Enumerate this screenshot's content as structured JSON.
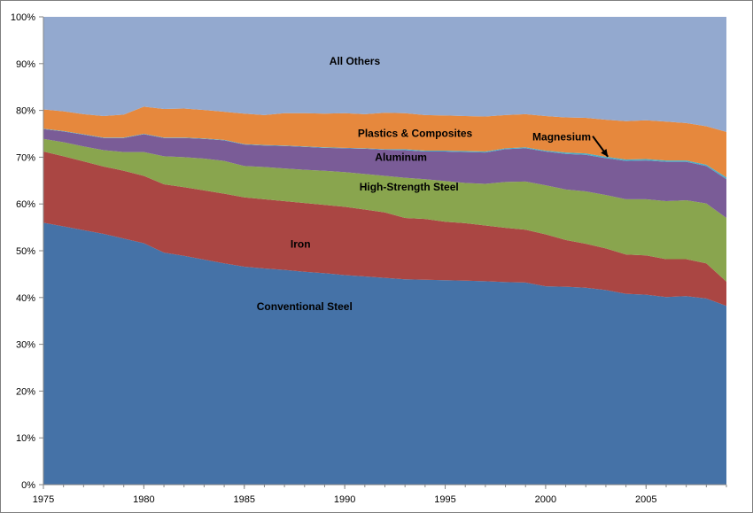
{
  "chart_data": {
    "type": "area",
    "stacked": true,
    "percent": true,
    "x": [
      1975,
      1976,
      1977,
      1978,
      1979,
      1980,
      1981,
      1982,
      1983,
      1984,
      1985,
      1986,
      1987,
      1988,
      1989,
      1990,
      1991,
      1992,
      1993,
      1994,
      1995,
      1996,
      1997,
      1998,
      1999,
      2000,
      2001,
      2002,
      2003,
      2004,
      2005,
      2006,
      2007,
      2008,
      2009
    ],
    "xticks": [
      "1975",
      "1980",
      "1985",
      "1990",
      "1995",
      "2000",
      "2005"
    ],
    "xtick_values": [
      1975,
      1980,
      1985,
      1990,
      1995,
      2000,
      2005
    ],
    "yticks": [
      "0%",
      "10%",
      "20%",
      "30%",
      "40%",
      "50%",
      "60%",
      "70%",
      "80%",
      "90%",
      "100%"
    ],
    "ylim": [
      0,
      100
    ],
    "xlim": [
      1975,
      2009
    ],
    "grid": false,
    "legend": "none",
    "series": [
      {
        "name": "Conventional Steel",
        "color": "#4572A7",
        "values": [
          56.0,
          55.2,
          54.4,
          53.6,
          52.6,
          51.6,
          49.6,
          48.9,
          48.1,
          47.3,
          46.6,
          46.2,
          45.9,
          45.5,
          45.2,
          44.8,
          44.5,
          44.2,
          43.9,
          43.8,
          43.7,
          43.6,
          43.5,
          43.3,
          43.2,
          42.4,
          42.3,
          42.1,
          41.6,
          40.8,
          40.6,
          40.1,
          40.3,
          39.8,
          38.2
        ]
      },
      {
        "name": "Iron",
        "color": "#AA4643",
        "values": [
          15.2,
          15.0,
          14.7,
          14.4,
          14.5,
          14.4,
          14.6,
          14.7,
          14.8,
          14.9,
          14.8,
          14.8,
          14.7,
          14.7,
          14.6,
          14.6,
          14.3,
          14.0,
          13.1,
          13.0,
          12.5,
          12.3,
          11.9,
          11.6,
          11.3,
          11.1,
          10.0,
          9.4,
          8.9,
          8.4,
          8.4,
          8.1,
          7.9,
          7.5,
          5.2
        ]
      },
      {
        "name": "High-Strength Steel",
        "color": "#89A54E",
        "values": [
          2.7,
          3.0,
          3.2,
          3.5,
          4.0,
          5.1,
          6.0,
          6.4,
          6.8,
          7.0,
          6.7,
          6.9,
          7.0,
          7.1,
          7.3,
          7.4,
          7.6,
          7.8,
          8.6,
          8.5,
          8.7,
          8.6,
          8.9,
          9.8,
          10.3,
          10.5,
          10.8,
          11.2,
          11.4,
          11.8,
          12.0,
          12.4,
          12.6,
          12.8,
          13.6
        ]
      },
      {
        "name": "Aluminum",
        "color": "#7A5C97",
        "values": [
          2.1,
          2.3,
          2.5,
          2.6,
          3.0,
          3.8,
          3.9,
          4.1,
          4.2,
          4.4,
          4.6,
          4.6,
          4.8,
          4.9,
          4.9,
          5.1,
          5.4,
          5.6,
          5.9,
          5.9,
          6.3,
          6.6,
          6.7,
          7.0,
          7.1,
          7.2,
          7.6,
          7.8,
          7.9,
          8.2,
          8.3,
          8.4,
          8.2,
          8.0,
          8.3
        ]
      },
      {
        "name": "Magnesium",
        "color": "#4BACC6",
        "values": [
          0.1,
          0.1,
          0.1,
          0.1,
          0.1,
          0.1,
          0.1,
          0.1,
          0.1,
          0.1,
          0.1,
          0.1,
          0.1,
          0.1,
          0.1,
          0.1,
          0.1,
          0.1,
          0.2,
          0.2,
          0.2,
          0.2,
          0.2,
          0.2,
          0.2,
          0.2,
          0.3,
          0.3,
          0.3,
          0.3,
          0.3,
          0.3,
          0.3,
          0.3,
          0.4
        ]
      },
      {
        "name": "Plastics & Composites",
        "color": "#E6883D",
        "values": [
          4.1,
          4.2,
          4.3,
          4.6,
          4.9,
          5.8,
          6.1,
          6.2,
          6.1,
          6.0,
          6.5,
          6.4,
          6.9,
          7.1,
          7.2,
          7.4,
          7.3,
          7.8,
          7.7,
          7.6,
          7.5,
          7.5,
          7.5,
          7.1,
          7.1,
          7.4,
          7.5,
          7.6,
          7.9,
          8.2,
          8.3,
          8.3,
          8.0,
          8.2,
          9.7
        ]
      },
      {
        "name": "All Others",
        "color": "#93A9CF",
        "values": [
          19.8,
          20.2,
          20.8,
          21.2,
          20.9,
          19.2,
          19.7,
          19.6,
          19.9,
          20.3,
          20.7,
          21.0,
          20.6,
          20.6,
          20.7,
          20.6,
          20.8,
          20.5,
          20.6,
          21.0,
          21.1,
          21.2,
          21.3,
          21.0,
          20.8,
          21.2,
          21.5,
          21.6,
          22.0,
          22.3,
          22.1,
          22.4,
          22.7,
          23.4,
          24.6
        ]
      }
    ],
    "annotations": [
      {
        "text": "All Others",
        "series": "All Others",
        "x": 1990.5,
        "y": 90.5
      },
      {
        "text": "Plastics & Composites",
        "series": "Plastics & Composites",
        "x": 1993.5,
        "y": 75.1
      },
      {
        "text": "Magnesium",
        "series": "Magnesium",
        "x": 2000.8,
        "y": 74.3,
        "arrow_to": {
          "x": 2003.1,
          "y": 70.1
        }
      },
      {
        "text": "Aluminum",
        "series": "Aluminum",
        "x": 1992.8,
        "y": 70.0
      },
      {
        "text": "High-Strength Steel",
        "series": "High-Strength Steel",
        "x": 1993.2,
        "y": 63.6
      },
      {
        "text": "Iron",
        "series": "Iron",
        "x": 1987.8,
        "y": 51.4
      },
      {
        "text": "Conventional Steel",
        "series": "Conventional Steel",
        "x": 1988.0,
        "y": 38.1
      }
    ]
  }
}
